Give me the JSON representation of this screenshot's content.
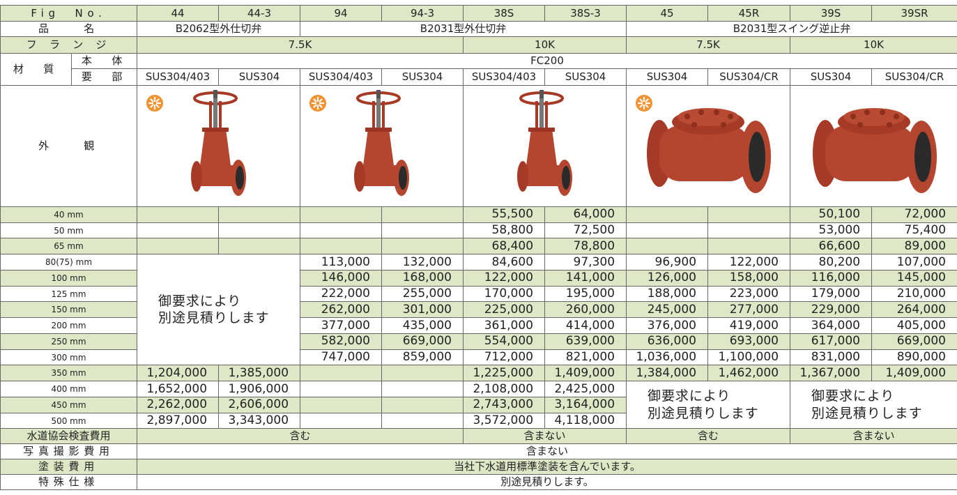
{
  "header": {
    "fig_no": "Fig　No.",
    "name": "品　　名",
    "flange": "フ ラ ン ジ",
    "material": "材　質",
    "body": "本　体",
    "parts": "要　部",
    "appearance": "外　　観"
  },
  "fig_nos": [
    "44",
    "44-3",
    "94",
    "94-3",
    "38S",
    "38S-3",
    "45",
    "45R",
    "39S",
    "39SR"
  ],
  "names": [
    "B2062型外仕切弁",
    "B2031型外仕切弁",
    "B2031型スイング逆止弁"
  ],
  "flanges": [
    "7.5K",
    "10K",
    "7.5K",
    "10K"
  ],
  "body_material": "FC200",
  "parts_materials": [
    "SUS304/403",
    "SUS304",
    "SUS304/403",
    "SUS304",
    "SUS304/403",
    "SUS304",
    "SUS304",
    "SUS304/CR",
    "SUS304",
    "SUS304/CR"
  ],
  "sizes": [
    "40 mm",
    "50 mm",
    "65 mm",
    "80(75) mm",
    "100 mm",
    "125 mm",
    "150 mm",
    "200 mm",
    "250 mm",
    "300 mm",
    "350 mm",
    "400 mm",
    "450 mm",
    "500 mm"
  ],
  "prices": [
    [
      null,
      null,
      null,
      null,
      "55,500",
      "64,000",
      null,
      null,
      "50,100",
      "72,000"
    ],
    [
      null,
      null,
      null,
      null,
      "58,800",
      "72,500",
      null,
      null,
      "53,000",
      "75,400"
    ],
    [
      null,
      null,
      null,
      null,
      "68,400",
      "78,800",
      null,
      null,
      "66,600",
      "89,000"
    ],
    [
      null,
      null,
      "113,000",
      "132,000",
      "84,600",
      "97,300",
      "96,900",
      "122,000",
      "80,200",
      "107,000"
    ],
    [
      null,
      null,
      "146,000",
      "168,000",
      "122,000",
      "141,000",
      "126,000",
      "158,000",
      "116,000",
      "145,000"
    ],
    [
      null,
      null,
      "222,000",
      "255,000",
      "170,000",
      "195,000",
      "188,000",
      "223,000",
      "179,000",
      "210,000"
    ],
    [
      null,
      null,
      "262,000",
      "301,000",
      "225,000",
      "260,000",
      "245,000",
      "277,000",
      "229,000",
      "264,000"
    ],
    [
      null,
      null,
      "377,000",
      "435,000",
      "361,000",
      "414,000",
      "376,000",
      "419,000",
      "364,000",
      "405,000"
    ],
    [
      null,
      null,
      "582,000",
      "669,000",
      "554,000",
      "639,000",
      "636,000",
      "693,000",
      "617,000",
      "669,000"
    ],
    [
      null,
      null,
      "747,000",
      "859,000",
      "712,000",
      "821,000",
      "1,036,000",
      "1,100,000",
      "831,000",
      "890,000"
    ],
    [
      "1,204,000",
      "1,385,000",
      null,
      null,
      "1,225,000",
      "1,409,000",
      "1,384,000",
      "1,462,000",
      "1,367,000",
      "1,409,000"
    ],
    [
      "1,652,000",
      "1,906,000",
      null,
      null,
      "2,108,000",
      "2,425,000",
      null,
      null,
      null,
      null
    ],
    [
      "2,262,000",
      "2,606,000",
      null,
      null,
      "2,743,000",
      "3,164,000",
      null,
      null,
      null,
      null
    ],
    [
      "2,897,000",
      "3,343,000",
      null,
      null,
      "3,572,000",
      "4,118,000",
      null,
      null,
      null,
      null
    ]
  ],
  "quote_notes": [
    "御要求により\n別途見積りします",
    "御要求により\n別途見積りします",
    "御要求により\n別途見積りします"
  ],
  "footer": {
    "inspection_label": "水道協会検査費用",
    "inspection": [
      "含む",
      "含まない",
      "含む",
      "含まない"
    ],
    "photo_label": "写真撮影費用",
    "photo": "含まない",
    "paint_label": "塗装費用",
    "paint": "当社下水道用標準塗装を含んでいます。",
    "special_label": "特殊仕様",
    "special": "別途見積りします。"
  }
}
